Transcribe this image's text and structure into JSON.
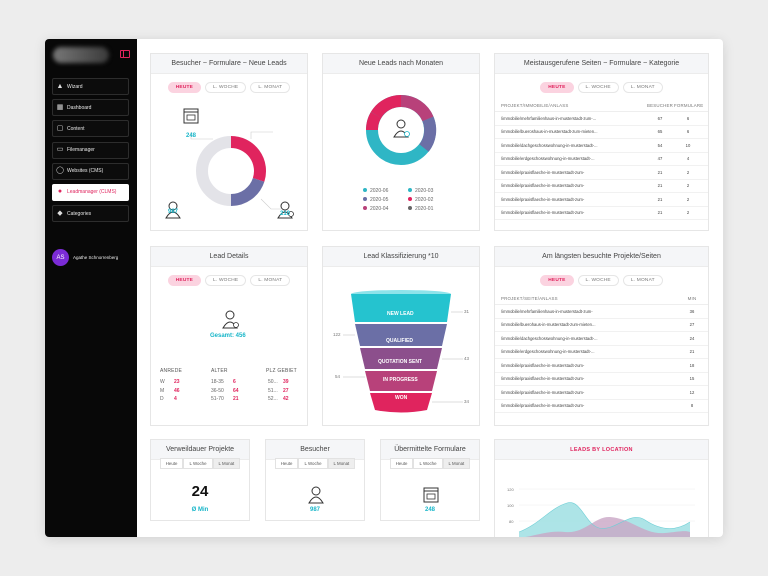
{
  "sidebar": {
    "items": [
      {
        "label": "Wizard",
        "icon": "wizard-hat-icon"
      },
      {
        "label": "Dashboard",
        "icon": "dashboard-icon"
      },
      {
        "label": "Content",
        "icon": "content-icon"
      },
      {
        "label": "Filemanager",
        "icon": "file-icon"
      },
      {
        "label": "Websites (CMS)",
        "icon": "globe-icon"
      },
      {
        "label": "Leadmanager (CLMS)",
        "icon": "users-icon",
        "active": true
      },
      {
        "label": "Categories",
        "icon": "tag-icon"
      }
    ],
    "user": {
      "initials": "AS",
      "name": "Agathe Schnorrenberg"
    }
  },
  "cards": {
    "besucher": {
      "title": "Besucher ~ Formulare ~ Neue Leads",
      "pills": [
        "HEUTE",
        "L. WOCHE",
        "L. MONAT"
      ],
      "forms": "248",
      "visitors": "987",
      "leads": "210"
    },
    "neue_leads": {
      "title": "Neue Leads nach Monaten",
      "legend": [
        {
          "label": "2020-06",
          "color": "#2fb6c5"
        },
        {
          "label": "2020-03",
          "color": "#2fb6c5"
        },
        {
          "label": "2020-05",
          "color": "#6b6fa6"
        },
        {
          "label": "2020-02",
          "color": "#e0245e"
        },
        {
          "label": "2020-04",
          "color": "#b8417a"
        },
        {
          "label": "2020-01",
          "color": "#666"
        }
      ]
    },
    "meist": {
      "title": "Meistausgerufene Seiten ~ Formulare  ~ Kategorie",
      "pills": [
        "HEUTE",
        "L. WOCHE",
        "L. MONAT"
      ],
      "headers": [
        "PROJEKT/IMMOBILIE/ANLASS",
        "BESUCHER",
        "FORMULARE"
      ],
      "rows": [
        [
          "/immobilie/mehrfamilienhaus-in-musterstadt-zum-...",
          "67",
          "6"
        ],
        [
          "/immobilie/bueroshaus-in-musterstadt-zum-mieten...",
          "65",
          "6"
        ],
        [
          "/immobilie/dachgeschosswohnung-in-musterstadt-...",
          "54",
          "10"
        ],
        [
          "/immobilie/erdgeschosswohnung-in-musterstadt-...",
          "47",
          "4"
        ],
        [
          "/immobilie/praxisflaeche-in-musterstadt-zum-",
          "21",
          "2"
        ],
        [
          "/immobilie/praxisflaeche-in-musterstadt-zum-",
          "21",
          "2"
        ],
        [
          "/immobilie/praxisflaeche-in-musterstadt-zum-",
          "21",
          "2"
        ],
        [
          "/immobilie/praxisflaeche-in-musterstadt-zum-",
          "21",
          "2"
        ]
      ]
    },
    "lead_details": {
      "title": "Lead Details",
      "pills": [
        "HEUTE",
        "L. WOCHE",
        "L. MONAT"
      ],
      "total": "Gesamt: 456",
      "anrede_label": "ANREDE",
      "alter_label": "ALTER",
      "plz_label": "PLZ GEBIET",
      "anrede": [
        [
          "W",
          "23"
        ],
        [
          "M",
          "46"
        ],
        [
          "D",
          "4"
        ]
      ],
      "alter": [
        [
          "18-35",
          "6"
        ],
        [
          "36-50",
          "64"
        ],
        [
          "51-70",
          "21"
        ]
      ],
      "plz": [
        [
          "50...",
          "39"
        ],
        [
          "51...",
          "27"
        ],
        [
          "52...",
          "42"
        ]
      ]
    },
    "klass": {
      "title": "Lead Klassifizierung *10",
      "stages": [
        "NEW LEAD",
        "QUALIFIED",
        "QUOTATION SENT",
        "IN PROGRESS",
        "WON"
      ],
      "left_values": [
        "122",
        "54"
      ],
      "right_values": [
        "31",
        "43",
        "34"
      ]
    },
    "laengsten": {
      "title": "Am längsten besuchte Projekte/Seiten",
      "pills": [
        "HEUTE",
        "L. WOCHE",
        "L. MONAT"
      ],
      "headers": [
        "PROJEKT/SEITE/ANLASS",
        "MIN"
      ],
      "rows": [
        [
          "/immobilie/mehrfamilienhaus-in-musterstadt-zum-",
          "36"
        ],
        [
          "/immobilie/buerohaus-in-musterstadt-zum-mieten...",
          "27"
        ],
        [
          "/immobilie/dachgeschosswohnung-in-musterstadt-...",
          "24"
        ],
        [
          "/immobilie/erdgeschosswohnung-in-musterstadt-...",
          "21"
        ],
        [
          "/immobilie/praxisflaeche-in-musterstadt-zum-",
          "18"
        ],
        [
          "/immobilie/praxisflaeche-in-musterstadt-zum-",
          "15"
        ],
        [
          "/immobilie/praxisflaeche-in-musterstadt-zum-",
          "12"
        ],
        [
          "/immobilie/praxisflaeche-in-musterstadt-zum-",
          "8"
        ]
      ]
    },
    "verweil": {
      "title": "Verweildauer Projekte",
      "tabs": [
        "Heute",
        "L Woche",
        "L Monat"
      ],
      "value": "24",
      "unit": "Ø Min"
    },
    "besucher_small": {
      "title": "Besucher",
      "tabs": [
        "Heute",
        "L Woche",
        "L Monat"
      ],
      "value": "987"
    },
    "formulare": {
      "title": "Übermittelte Formulare",
      "tabs": [
        "Heute",
        "L Woche",
        "L Monat"
      ],
      "value": "248"
    },
    "location": {
      "title": "LEADS BY LOCATION",
      "yticks": [
        "120",
        "100",
        "80"
      ]
    }
  }
}
